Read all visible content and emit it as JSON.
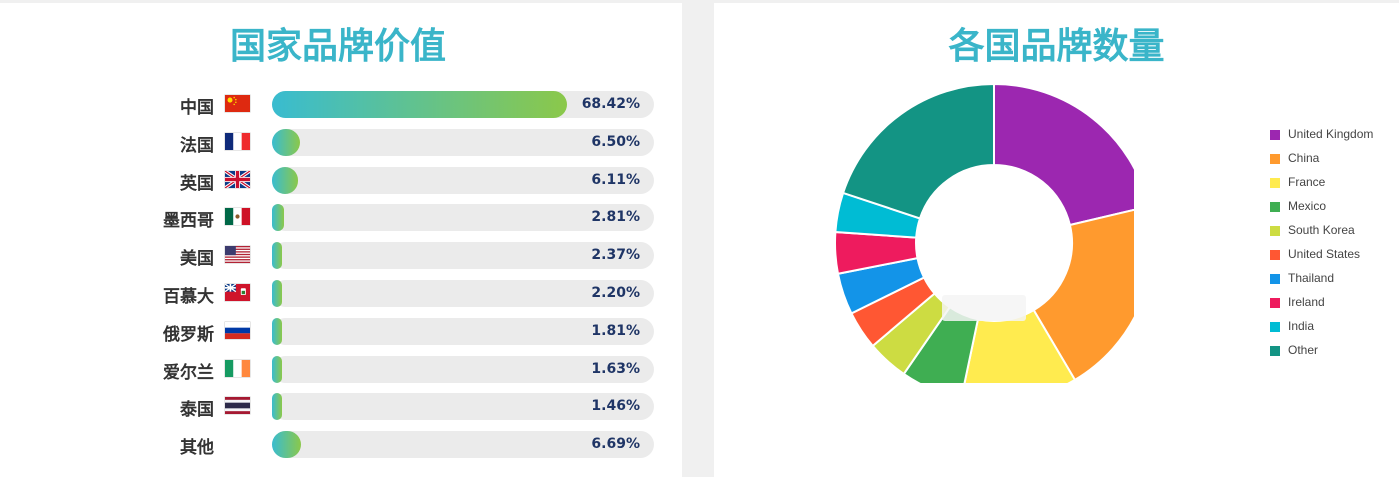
{
  "chart_data": [
    {
      "type": "bar",
      "title": "国家品牌价值",
      "orientation": "horizontal",
      "categories": [
        "中国",
        "法国",
        "英国",
        "墨西哥",
        "美国",
        "百慕大",
        "俄罗斯",
        "爱尔兰",
        "泰国",
        "其他"
      ],
      "values": [
        68.42,
        6.5,
        6.11,
        2.81,
        2.37,
        2.2,
        1.81,
        1.63,
        1.46,
        6.69
      ],
      "value_labels": [
        "68.42%",
        "6.50%",
        "6.11%",
        "2.81%",
        "2.37%",
        "2.20%",
        "1.81%",
        "1.63%",
        "1.46%",
        "6.69%"
      ],
      "flags": [
        "china",
        "france",
        "uk",
        "mexico",
        "usa",
        "bermuda",
        "russia",
        "ireland",
        "thailand",
        ""
      ],
      "colors": {
        "gradient_start": "#39bcd0",
        "gradient_end": "#8bc84a",
        "track": "#ebebeb",
        "value_text": "#1f3566"
      },
      "xlim": [
        0,
        100
      ]
    },
    {
      "type": "pie",
      "title": "各国品牌数量",
      "donut": true,
      "categories": [
        "United Kingdom",
        "China",
        "France",
        "Mexico",
        "South Korea",
        "United States",
        "Thailand",
        "Ireland",
        "India",
        "Other"
      ],
      "values": [
        21.3,
        20.2,
        11.8,
        6.3,
        4.2,
        3.9,
        4.2,
        4.2,
        4.0,
        19.9
      ],
      "colors": [
        "#9c27b0",
        "#ff9a2e",
        "#ffeb4f",
        "#3fae52",
        "#cddc42",
        "#ff5733",
        "#1394e8",
        "#ee1b5e",
        "#00bcd4",
        "#139484"
      ],
      "legend_position": "right"
    }
  ]
}
